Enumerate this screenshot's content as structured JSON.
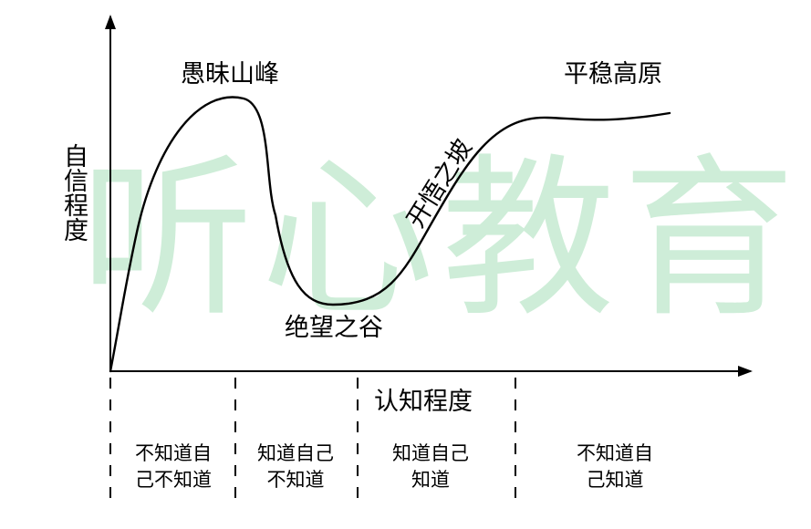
{
  "watermark": {
    "text": "听心教育",
    "color": "#c9ecd4"
  },
  "axes": {
    "y_label": "自信程度",
    "x_label": "认知程度"
  },
  "curve": {
    "peak_label": "愚昧山峰",
    "valley_label": "绝望之谷",
    "slope_label": "开悟之坡",
    "plateau_label": "平稳高原"
  },
  "segments": [
    {
      "text": "不知道自己不知道"
    },
    {
      "text": "知道自己不知道"
    },
    {
      "text": "知道自己知道"
    },
    {
      "text": "不知道自己知道"
    }
  ],
  "colors": {
    "line": "#000000",
    "background": "#ffffff"
  }
}
